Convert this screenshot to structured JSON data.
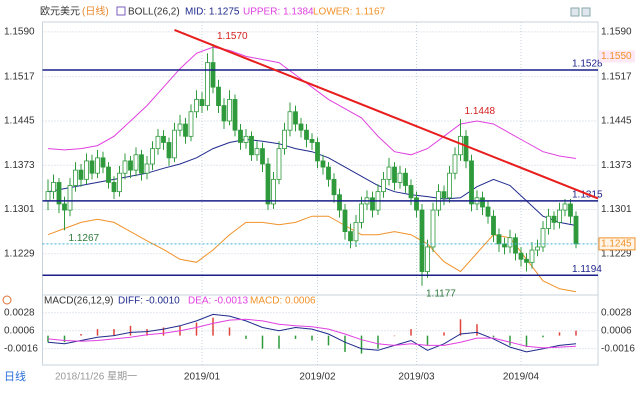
{
  "header": {
    "symbol": "欧元美元",
    "period": "(日线)",
    "indicator": "BOLL(26,2)",
    "mid": "MID: 1.1275",
    "upper": "UPPER: 1.1384",
    "lower": "LOWER: 1.1167"
  },
  "footer": {
    "period": "日线",
    "date": "2018/11/26 星期一"
  },
  "chart_data": [
    {
      "type": "candlestick",
      "xlim": [
        -1,
        100
      ],
      "ylim": [
        1.117,
        1.1606
      ],
      "yticks": [
        {
          "value": 1.159,
          "label": "1.1590"
        },
        1.1517,
        1.1445,
        1.1373,
        1.1301,
        1.1229
      ],
      "xticks": [
        {
          "value": 28,
          "label": "2019/01"
        },
        {
          "value": 49,
          "label": "2019/02"
        },
        {
          "value": 67,
          "label": "2019/03"
        },
        {
          "value": 86,
          "label": "2019/04"
        }
      ],
      "grid": true,
      "up_color": "#ffffff",
      "down_color": "#2f9a3c",
      "candles": [
        [
          1.1315,
          1.135,
          1.13,
          1.133
        ],
        [
          1.133,
          1.1358,
          1.1318,
          1.1345
        ],
        [
          1.1345,
          1.1352,
          1.1295,
          1.131
        ],
        [
          1.131,
          1.1322,
          1.1267,
          1.13
        ],
        [
          1.13,
          1.1352,
          1.129,
          1.134
        ],
        [
          1.134,
          1.1378,
          1.133,
          1.1365
        ],
        [
          1.1365,
          1.1375,
          1.1338,
          1.135
        ],
        [
          1.135,
          1.1392,
          1.1342,
          1.138
        ],
        [
          1.138,
          1.139,
          1.135,
          1.136
        ],
        [
          1.136,
          1.1398,
          1.1352,
          1.1385
        ],
        [
          1.1385,
          1.1395,
          1.136,
          1.137
        ],
        [
          1.137,
          1.1378,
          1.1335,
          1.1345
        ],
        [
          1.1345,
          1.1355,
          1.1318,
          1.133
        ],
        [
          1.133,
          1.1372,
          1.1322,
          1.136
        ],
        [
          1.136,
          1.1392,
          1.135,
          1.138
        ],
        [
          1.138,
          1.1388,
          1.1352,
          1.1365
        ],
        [
          1.1365,
          1.1402,
          1.1355,
          1.139
        ],
        [
          1.139,
          1.1398,
          1.1348,
          1.136
        ],
        [
          1.136,
          1.1388,
          1.135,
          1.1375
        ],
        [
          1.1375,
          1.1412,
          1.1365,
          1.14
        ],
        [
          1.14,
          1.1432,
          1.139,
          1.142
        ],
        [
          1.142,
          1.143,
          1.1398,
          1.141
        ],
        [
          1.141,
          1.1418,
          1.1372,
          1.1385
        ],
        [
          1.1385,
          1.1442,
          1.1378,
          1.143
        ],
        [
          1.143,
          1.1455,
          1.142,
          1.144
        ],
        [
          1.144,
          1.145,
          1.1408,
          1.142
        ],
        [
          1.142,
          1.1472,
          1.1412,
          1.146
        ],
        [
          1.146,
          1.1495,
          1.145,
          1.148
        ],
        [
          1.148,
          1.1492,
          1.1458,
          1.147
        ],
        [
          1.147,
          1.1555,
          1.1462,
          1.154
        ],
        [
          1.154,
          1.157,
          1.149,
          1.15
        ],
        [
          1.15,
          1.1512,
          1.1458,
          1.147
        ],
        [
          1.147,
          1.1482,
          1.1432,
          1.1445
        ],
        [
          1.1445,
          1.1495,
          1.1438,
          1.148
        ],
        [
          1.148,
          1.1488,
          1.142,
          1.143
        ],
        [
          1.143,
          1.144,
          1.1398,
          1.141
        ],
        [
          1.141,
          1.1432,
          1.14,
          1.142
        ],
        [
          1.142,
          1.1428,
          1.138,
          1.139
        ],
        [
          1.139,
          1.1412,
          1.138,
          1.14
        ],
        [
          1.14,
          1.141,
          1.1362,
          1.1375
        ],
        [
          1.1375,
          1.1385,
          1.13,
          1.131
        ],
        [
          1.131,
          1.1362,
          1.1302,
          1.135
        ],
        [
          1.135,
          1.1412,
          1.1342,
          1.14
        ],
        [
          1.14,
          1.1442,
          1.139,
          1.143
        ],
        [
          1.143,
          1.1475,
          1.142,
          1.146
        ],
        [
          1.146,
          1.147,
          1.1428,
          1.144
        ],
        [
          1.144,
          1.145,
          1.1418,
          1.143
        ],
        [
          1.143,
          1.144,
          1.1402,
          1.1415
        ],
        [
          1.1415,
          1.1425,
          1.1398,
          1.141
        ],
        [
          1.141,
          1.1418,
          1.1368,
          1.138
        ],
        [
          1.138,
          1.139,
          1.1358,
          1.137
        ],
        [
          1.137,
          1.1378,
          1.1338,
          1.135
        ],
        [
          1.135,
          1.136,
          1.1312,
          1.1325
        ],
        [
          1.1325,
          1.1335,
          1.1288,
          1.13
        ],
        [
          1.13,
          1.131,
          1.1252,
          1.1265
        ],
        [
          1.1265,
          1.1278,
          1.1238,
          1.125
        ],
        [
          1.125,
          1.1292,
          1.124,
          1.128
        ],
        [
          1.128,
          1.1322,
          1.127,
          1.131
        ],
        [
          1.131,
          1.1332,
          1.13,
          1.132
        ],
        [
          1.132,
          1.133,
          1.1288,
          1.13
        ],
        [
          1.13,
          1.1342,
          1.1292,
          1.133
        ],
        [
          1.133,
          1.1362,
          1.132,
          1.135
        ],
        [
          1.135,
          1.1385,
          1.134,
          1.137
        ],
        [
          1.137,
          1.1378,
          1.1332,
          1.1345
        ],
        [
          1.1345,
          1.1372,
          1.1335,
          1.136
        ],
        [
          1.136,
          1.1368,
          1.1328,
          1.134
        ],
        [
          1.134,
          1.135,
          1.1308,
          1.132
        ],
        [
          1.132,
          1.133,
          1.1288,
          1.13
        ],
        [
          1.13,
          1.131,
          1.1177,
          1.12
        ],
        [
          1.12,
          1.1252,
          1.119,
          1.124
        ],
        [
          1.124,
          1.1312,
          1.1232,
          1.13
        ],
        [
          1.13,
          1.1342,
          1.129,
          1.133
        ],
        [
          1.133,
          1.134,
          1.1308,
          1.132
        ],
        [
          1.132,
          1.1372,
          1.1312,
          1.136
        ],
        [
          1.136,
          1.1402,
          1.135,
          1.139
        ],
        [
          1.139,
          1.1448,
          1.138,
          1.142
        ],
        [
          1.142,
          1.143,
          1.1368,
          1.138
        ],
        [
          1.138,
          1.139,
          1.1298,
          1.131
        ],
        [
          1.131,
          1.1332,
          1.13,
          1.132
        ],
        [
          1.132,
          1.133,
          1.1292,
          1.1305
        ],
        [
          1.1305,
          1.1315,
          1.1278,
          1.129
        ],
        [
          1.129,
          1.13,
          1.1248,
          1.126
        ],
        [
          1.126,
          1.127,
          1.1232,
          1.1245
        ],
        [
          1.1245,
          1.1255,
          1.1228,
          1.124
        ],
        [
          1.124,
          1.1268,
          1.123,
          1.1255
        ],
        [
          1.1255,
          1.1262,
          1.1218,
          1.123
        ],
        [
          1.123,
          1.124,
          1.1208,
          1.122
        ],
        [
          1.122,
          1.123,
          1.12,
          1.1215
        ],
        [
          1.1215,
          1.1248,
          1.1205,
          1.1235
        ],
        [
          1.1235,
          1.1252,
          1.1225,
          1.124
        ],
        [
          1.124,
          1.1282,
          1.1232,
          1.127
        ],
        [
          1.127,
          1.1302,
          1.126,
          1.129
        ],
        [
          1.129,
          1.1298,
          1.1268,
          1.128
        ],
        [
          1.128,
          1.1312,
          1.127,
          1.13
        ],
        [
          1.13,
          1.1318,
          1.129,
          1.131
        ],
        [
          1.131,
          1.1318,
          1.1278,
          1.129
        ],
        [
          1.129,
          1.1298,
          1.1238,
          1.1245
        ]
      ],
      "x": [
        0,
        3,
        6,
        9,
        12,
        15,
        18,
        21,
        24,
        27,
        30,
        33,
        36,
        39,
        42,
        45,
        48,
        51,
        54,
        57,
        60,
        63,
        66,
        69,
        72,
        75,
        78,
        81,
        84,
        87,
        90,
        93,
        96
      ],
      "series": [
        {
          "name": "MID",
          "color": "#1f2a8c",
          "values": [
            1.133,
            1.1335,
            1.134,
            1.1345,
            1.135,
            1.1355,
            1.136,
            1.1368,
            1.1375,
            1.1385,
            1.14,
            1.141,
            1.1415,
            1.1412,
            1.1408,
            1.14,
            1.1395,
            1.1385,
            1.137,
            1.1355,
            1.134,
            1.133,
            1.1325,
            1.1322,
            1.1318,
            1.132,
            1.1338,
            1.135,
            1.134,
            1.1315,
            1.129,
            1.128,
            1.1275
          ]
        },
        {
          "name": "UPPER",
          "color": "#e040e0",
          "values": [
            1.14,
            1.1398,
            1.14,
            1.1405,
            1.142,
            1.1445,
            1.147,
            1.15,
            1.153,
            1.1555,
            1.1565,
            1.156,
            1.155,
            1.1545,
            1.154,
            1.152,
            1.15,
            1.148,
            1.1465,
            1.145,
            1.142,
            1.1395,
            1.139,
            1.14,
            1.142,
            1.144,
            1.1445,
            1.144,
            1.1425,
            1.141,
            1.1395,
            1.1388,
            1.1384
          ]
        },
        {
          "name": "LOWER",
          "color": "#f0922a",
          "values": [
            1.126,
            1.127,
            1.128,
            1.1285,
            1.128,
            1.1265,
            1.125,
            1.1236,
            1.122,
            1.1215,
            1.1235,
            1.126,
            1.128,
            1.128,
            1.1276,
            1.128,
            1.129,
            1.129,
            1.1275,
            1.126,
            1.126,
            1.1265,
            1.126,
            1.1245,
            1.1216,
            1.12,
            1.123,
            1.126,
            1.1255,
            1.122,
            1.1185,
            1.1172,
            1.1167
          ]
        }
      ],
      "hlines": [
        {
          "value": 1.1528,
          "label": "1.1528"
        },
        {
          "value": 1.1315,
          "label": "1.1315"
        },
        {
          "value": 1.1194,
          "label": "1.1194"
        }
      ],
      "hline_color": "#1a1f8a",
      "trendline": {
        "x": [
          23,
          100
        ],
        "y": [
          1.1593,
          1.1319
        ],
        "color": "#e81e1e"
      },
      "point_labels": [
        {
          "candle": 30,
          "value": 1.157,
          "label": "1.1570"
        },
        {
          "candle": 75,
          "value": 1.1448,
          "label": "1.1448"
        },
        {
          "candle": 3,
          "value": 1.1267,
          "label": "1.1267"
        },
        {
          "candle": 68,
          "value": 1.1177,
          "label": "1.1177"
        }
      ],
      "band_label": {
        "value": 1.155,
        "label": "1.1550"
      },
      "current": {
        "value": 1.1245,
        "label": "1.1245"
      }
    },
    {
      "type": "macd",
      "title": "MACD(26,12,9)",
      "stats": [
        {
          "text": "DIFF: -0.0010",
          "color": "#1f2a8c"
        },
        {
          "text": "DEA: -0.0013",
          "color": "#e040e0"
        },
        {
          "text": "MACD: 0.0006",
          "color": "#f0922a"
        }
      ],
      "xlim": [
        -1,
        100
      ],
      "ylim": [
        -0.0036,
        0.004
      ],
      "yticks": [
        0.0028,
        0.0006,
        -0.0016
      ],
      "grid": true,
      "x": [
        0,
        3,
        6,
        9,
        12,
        15,
        18,
        21,
        24,
        27,
        30,
        33,
        36,
        39,
        42,
        45,
        48,
        51,
        54,
        57,
        60,
        63,
        66,
        69,
        72,
        75,
        78,
        81,
        84,
        87,
        90,
        93,
        96
      ],
      "series": [
        {
          "name": "DIFF",
          "color": "#1f2a8c",
          "values": [
            -0.0008,
            -0.001,
            -0.0006,
            -0.0002,
            0,
            0.0004,
            0.0005,
            0.0008,
            0.0012,
            0.0018,
            0.0026,
            0.0024,
            0.0018,
            0.001,
            0.0006,
            0.001,
            0.0008,
            0.0002,
            -0.0008,
            -0.0016,
            -0.0018,
            -0.0012,
            -0.0006,
            -0.0018,
            -0.001,
            0.0002,
            0.0004,
            -0.0004,
            -0.0014,
            -0.002,
            -0.0016,
            -0.0012,
            -0.001
          ]
        },
        {
          "name": "DEA",
          "color": "#e040e0",
          "values": [
            -0.0004,
            -0.0006,
            -0.0007,
            -0.0006,
            -0.0004,
            -0.0002,
            0.0001,
            0.0003,
            0.0006,
            0.001,
            0.0015,
            0.0019,
            0.002,
            0.0018,
            0.0014,
            0.0012,
            0.0011,
            0.0008,
            0.0002,
            -0.0005,
            -0.001,
            -0.0012,
            -0.001,
            -0.0012,
            -0.0012,
            -0.0008,
            -0.0003,
            -0.0003,
            -0.0008,
            -0.0013,
            -0.0015,
            -0.0014,
            -0.0013
          ]
        }
      ],
      "histogram": {
        "pos_color": "#e0443c",
        "neg_color": "#2f9a3c",
        "values": [
          -0.0008,
          -0.0008,
          0.0002,
          0.0008,
          0.0008,
          0.0012,
          0.0008,
          0.001,
          0.0012,
          0.0016,
          0.0022,
          0.001,
          -0.0004,
          -0.0016,
          -0.0016,
          -0.0004,
          -0.0006,
          -0.0012,
          -0.002,
          -0.0022,
          -0.0016,
          0,
          0.0008,
          -0.0012,
          0.0004,
          0.002,
          0.0014,
          -0.0002,
          -0.0012,
          -0.0014,
          -0.0002,
          0.0004,
          0.0006
        ]
      }
    }
  ]
}
